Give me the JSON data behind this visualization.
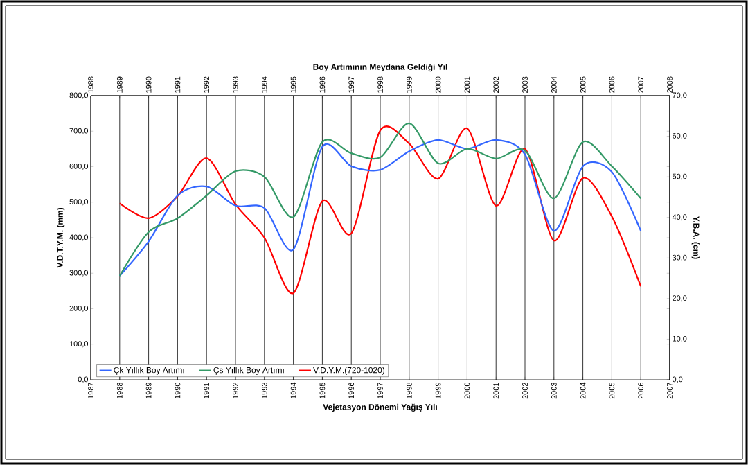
{
  "chart_data": {
    "type": "line",
    "x2label": "Boy Artımının Meydana Geldiği Yıl",
    "xlabel": "Vejetasyon Dönemi Yağış Yılı",
    "ylabel": "V.D.T.Y.M. (mm)",
    "y2label": "Y.B.A. (cm)",
    "x": [
      1988,
      1989,
      1990,
      1991,
      1992,
      1993,
      1994,
      1995,
      1996,
      1997,
      1998,
      1999,
      2000,
      2001,
      2002,
      2003,
      2004,
      2005,
      2006
    ],
    "series": [
      {
        "name": "Çk Yıllık Boy Artımı",
        "color": "#3366ff",
        "axis": "y2",
        "values": [
          25.6,
          34.1,
          45.4,
          47.6,
          42.9,
          42.3,
          32.1,
          57.4,
          52.6,
          51.7,
          56.3,
          59.1,
          56.9,
          59.1,
          55.5,
          36.7,
          52.6,
          51.2,
          36.7
        ]
      },
      {
        "name": "Çs Yıllık Boy Artımı",
        "color": "#339966",
        "axis": "y2",
        "values": [
          25.6,
          36.4,
          39.8,
          45.4,
          51.4,
          50.0,
          40.1,
          58.6,
          55.8,
          54.8,
          63.2,
          53.3,
          56.9,
          54.5,
          56.5,
          44.7,
          58.6,
          52.6,
          44.7
        ]
      },
      {
        "name": "V.D.Y.M.(720-1020)",
        "color": "#ff0000",
        "axis": "y",
        "values": [
          497,
          455,
          517,
          624,
          494,
          400,
          244,
          503,
          412,
          702,
          665,
          566,
          708,
          490,
          650,
          392,
          568,
          460,
          263
        ]
      }
    ],
    "xlim": [
      1987,
      2007
    ],
    "xticks": [
      1987,
      1988,
      1989,
      1990,
      1991,
      1992,
      1993,
      1994,
      1995,
      1996,
      1997,
      1998,
      1999,
      2000,
      2001,
      2002,
      2003,
      2004,
      2005,
      2006,
      2007
    ],
    "x2lim": [
      1988,
      2008
    ],
    "x2ticks": [
      1988,
      1989,
      1990,
      1991,
      1992,
      1993,
      1994,
      1995,
      1996,
      1997,
      1998,
      1999,
      2000,
      2001,
      2002,
      2003,
      2004,
      2005,
      2006,
      2007,
      2008
    ],
    "ylim": [
      0,
      800
    ],
    "yticks": [
      {
        "value": 0,
        "label": "0,0"
      },
      {
        "value": 100,
        "label": "100,0"
      },
      {
        "value": 200,
        "label": "200,0"
      },
      {
        "value": 300,
        "label": "300,0"
      },
      {
        "value": 400,
        "label": "400,0"
      },
      {
        "value": 500,
        "label": "500,0"
      },
      {
        "value": 600,
        "label": "600,0"
      },
      {
        "value": 700,
        "label": "700,0"
      },
      {
        "value": 800,
        "label": "800,0"
      }
    ],
    "y2lim": [
      0,
      70
    ],
    "y2ticks": [
      {
        "value": 0,
        "label": "0,0"
      },
      {
        "value": 10,
        "label": "10,0"
      },
      {
        "value": 20,
        "label": "20,0"
      },
      {
        "value": 30,
        "label": "30,0"
      },
      {
        "value": 40,
        "label": "40,0"
      },
      {
        "value": 50,
        "label": "50,0"
      },
      {
        "value": 60,
        "label": "60,0"
      },
      {
        "value": 70,
        "label": "70,0"
      }
    ],
    "grid": "x",
    "legend": "bottom left"
  }
}
